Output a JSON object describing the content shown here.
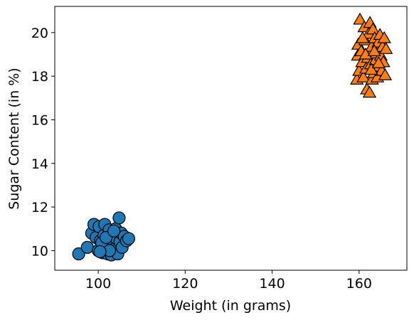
{
  "chart_data": {
    "type": "scatter",
    "title": "",
    "xlabel": "Weight (in grams)",
    "ylabel": "Sugar Content (in %)",
    "xlim": [
      90,
      171
    ],
    "ylim": [
      9.1,
      21.2
    ],
    "xticks": [
      100,
      120,
      140,
      160
    ],
    "yticks": [
      10,
      12,
      14,
      16,
      18,
      20
    ],
    "grid": false,
    "legend": "none",
    "series": [
      {
        "marker": "circle",
        "color": "#1f77b4",
        "points": [
          [
            95.5,
            9.85
          ],
          [
            97.5,
            10.15
          ],
          [
            98.5,
            10.8
          ],
          [
            99,
            11.2
          ],
          [
            99.5,
            10.6
          ],
          [
            100,
            10.0
          ],
          [
            100.2,
            11.1
          ],
          [
            100.5,
            10.45
          ],
          [
            101,
            9.9
          ],
          [
            101.3,
            10.7
          ],
          [
            101.5,
            11.2
          ],
          [
            102,
            10.2
          ],
          [
            102.2,
            9.85
          ],
          [
            102.5,
            10.95
          ],
          [
            102.8,
            10.5
          ],
          [
            103,
            9.8
          ],
          [
            103.2,
            10.35
          ],
          [
            103.5,
            10.75
          ],
          [
            103.8,
            10.1
          ],
          [
            104,
            11.0
          ],
          [
            104.2,
            10.55
          ],
          [
            104.5,
            9.85
          ],
          [
            104.8,
            11.5
          ],
          [
            105,
            10.4
          ],
          [
            105.3,
            10.8
          ],
          [
            105.5,
            10.15
          ],
          [
            106,
            10.65
          ],
          [
            106.5,
            10.45
          ],
          [
            107,
            10.55
          ],
          [
            100.8,
            10.35
          ],
          [
            101.8,
            10.6
          ],
          [
            103.6,
            10.9
          ],
          [
            102.6,
            10.0
          ],
          [
            100.4,
            9.95
          ]
        ]
      },
      {
        "marker": "triangle",
        "color": "#ff7f0e",
        "points": [
          [
            159.5,
            17.8
          ],
          [
            159.7,
            18.9
          ],
          [
            159.8,
            19.4
          ],
          [
            160,
            18.2
          ],
          [
            160.2,
            20.55
          ],
          [
            160.5,
            19.1
          ],
          [
            160.7,
            18.6
          ],
          [
            161,
            17.9
          ],
          [
            161.2,
            20.2
          ],
          [
            161.4,
            19.6
          ],
          [
            161.6,
            18.3
          ],
          [
            161.8,
            17.35
          ],
          [
            162,
            18.8
          ],
          [
            162.2,
            19.9
          ],
          [
            162.4,
            17.2
          ],
          [
            162.5,
            20.4
          ],
          [
            162.7,
            18.5
          ],
          [
            162.9,
            19.3
          ],
          [
            163,
            17.8
          ],
          [
            163.2,
            20.1
          ],
          [
            163.4,
            18.1
          ],
          [
            163.6,
            19.7
          ],
          [
            163.8,
            18.7
          ],
          [
            164,
            19.0
          ],
          [
            164.2,
            17.9
          ],
          [
            164.4,
            19.5
          ],
          [
            164.6,
            18.4
          ],
          [
            164.8,
            19.85
          ],
          [
            165,
            18.9
          ],
          [
            165.2,
            18.2
          ],
          [
            165.4,
            19.3
          ],
          [
            165.6,
            18.6
          ],
          [
            165.8,
            19.7
          ],
          [
            166,
            18.0
          ],
          [
            166.2,
            19.2
          ],
          [
            161.5,
            18.95
          ],
          [
            162.8,
            18.25
          ],
          [
            163.5,
            19.1
          ],
          [
            164.5,
            18.55
          ],
          [
            160.8,
            19.7
          ]
        ]
      }
    ]
  }
}
